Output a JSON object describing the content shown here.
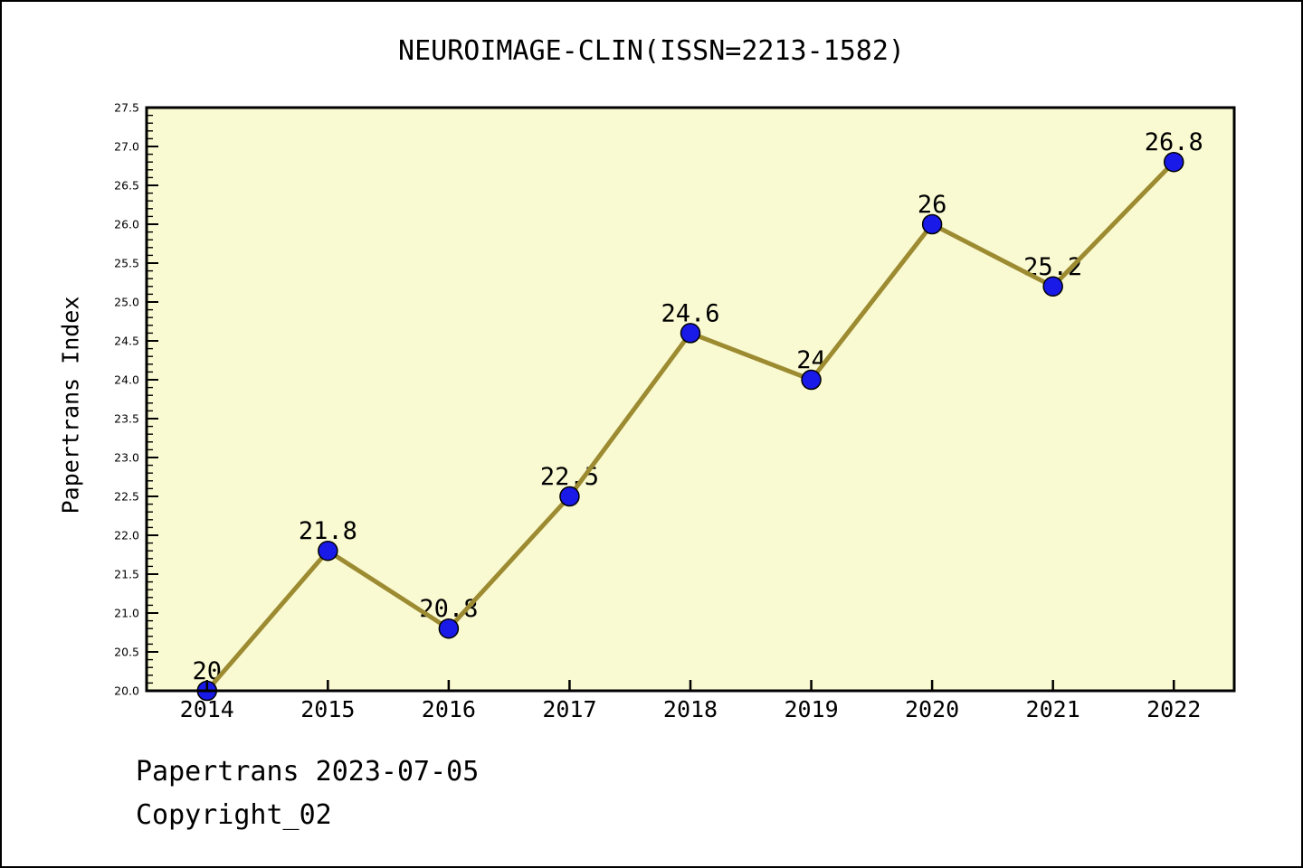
{
  "header": {
    "title": "NEUROIMAGE-CLIN(ISSN=2213-1582)"
  },
  "footer": {
    "source_line": "Papertrans 2023-07-05",
    "copyright_line": "Copyright_02"
  },
  "chart_data": {
    "type": "line",
    "title": "NEUROIMAGE-CLIN(ISSN=2213-1582)",
    "xlabel": "",
    "ylabel": "Papertrans Index",
    "x": [
      2014,
      2015,
      2016,
      2017,
      2018,
      2019,
      2020,
      2021,
      2022
    ],
    "series": [
      {
        "name": "Papertrans Index",
        "values": [
          20,
          21.8,
          20.8,
          22.5,
          24.6,
          24,
          26,
          25.2,
          26.8
        ],
        "point_labels": [
          "20",
          "21.8",
          "20.8",
          "22.5",
          "24.6",
          "24",
          "26",
          "25.2",
          "26.8"
        ]
      }
    ],
    "xticks": [
      2014,
      2015,
      2016,
      2017,
      2018,
      2019,
      2020,
      2021,
      2022
    ],
    "xlim": [
      2013.5,
      2022.5
    ],
    "ylim": [
      20.0,
      27.5
    ],
    "ytick_major_step": 0.5,
    "ytick_minor_step": 0.1,
    "grid": false,
    "legend_position": "none",
    "colors": {
      "plot_background": "#FAFAD2",
      "line": "#9C8B31",
      "marker_fill": "#1A1AE8",
      "marker_edge": "#000000",
      "axis": "#000000",
      "text": "#000000"
    }
  }
}
